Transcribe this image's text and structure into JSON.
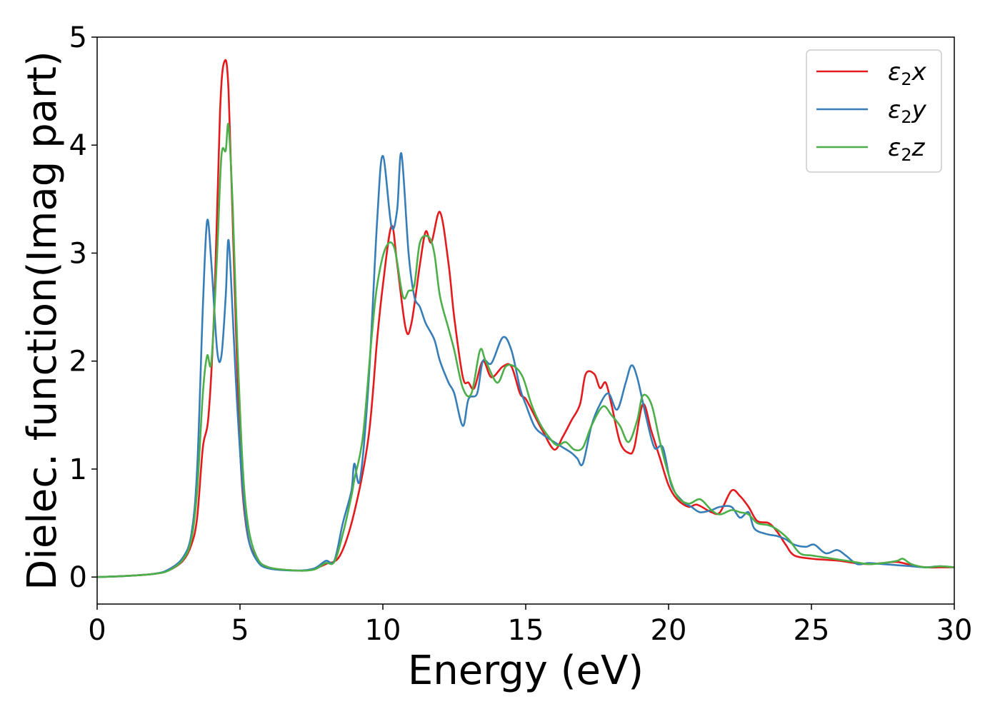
{
  "chart_data": {
    "type": "line",
    "title": "",
    "xlabel": "Energy (eV)",
    "ylabel": "Dielec. function(Imag part)",
    "xlim": [
      0,
      30
    ],
    "ylim": [
      -0.25,
      5
    ],
    "xticks": [
      0,
      5,
      10,
      15,
      20,
      25,
      30
    ],
    "yticks": [
      0,
      1,
      2,
      3,
      4,
      5
    ],
    "grid": false,
    "legend": "top-right",
    "series": [
      {
        "name": "ε2x",
        "legend_main": "ε",
        "legend_sub": "2",
        "legend_tail": "x",
        "color": "#e41a1c",
        "points": [
          [
            0,
            0.0
          ],
          [
            1,
            0.01
          ],
          [
            2,
            0.03
          ],
          [
            2.5,
            0.06
          ],
          [
            3,
            0.15
          ],
          [
            3.3,
            0.3
          ],
          [
            3.5,
            0.55
          ],
          [
            3.7,
            1.2
          ],
          [
            3.9,
            1.5
          ],
          [
            4.1,
            2.5
          ],
          [
            4.3,
            4.3
          ],
          [
            4.45,
            4.77
          ],
          [
            4.6,
            4.5
          ],
          [
            4.8,
            2.8
          ],
          [
            5,
            1.2
          ],
          [
            5.2,
            0.5
          ],
          [
            5.5,
            0.2
          ],
          [
            6,
            0.09
          ],
          [
            7,
            0.06
          ],
          [
            7.5,
            0.07
          ],
          [
            8,
            0.12
          ],
          [
            8.5,
            0.2
          ],
          [
            9,
            0.6
          ],
          [
            9.5,
            1.3
          ],
          [
            9.8,
            2.2
          ],
          [
            10,
            2.7
          ],
          [
            10.3,
            3.25
          ],
          [
            10.5,
            2.9
          ],
          [
            10.8,
            2.3
          ],
          [
            11,
            2.35
          ],
          [
            11.3,
            2.9
          ],
          [
            11.5,
            3.2
          ],
          [
            11.7,
            3.1
          ],
          [
            12,
            3.38
          ],
          [
            12.3,
            2.9
          ],
          [
            12.5,
            2.4
          ],
          [
            12.8,
            1.85
          ],
          [
            13,
            1.8
          ],
          [
            13.2,
            1.75
          ],
          [
            13.5,
            2.0
          ],
          [
            13.8,
            1.85
          ],
          [
            14.2,
            1.95
          ],
          [
            14.5,
            1.95
          ],
          [
            14.8,
            1.7
          ],
          [
            15,
            1.65
          ],
          [
            15.3,
            1.5
          ],
          [
            15.6,
            1.35
          ],
          [
            16,
            1.18
          ],
          [
            16.3,
            1.3
          ],
          [
            16.6,
            1.45
          ],
          [
            16.9,
            1.6
          ],
          [
            17.1,
            1.88
          ],
          [
            17.4,
            1.88
          ],
          [
            17.6,
            1.75
          ],
          [
            17.8,
            1.8
          ],
          [
            18,
            1.6
          ],
          [
            18.3,
            1.25
          ],
          [
            18.6,
            1.15
          ],
          [
            18.8,
            1.2
          ],
          [
            19.1,
            1.6
          ],
          [
            19.4,
            1.35
          ],
          [
            19.7,
            1.1
          ],
          [
            20,
            0.85
          ],
          [
            20.3,
            0.72
          ],
          [
            20.7,
            0.65
          ],
          [
            21,
            0.67
          ],
          [
            21.5,
            0.6
          ],
          [
            21.8,
            0.6
          ],
          [
            22.2,
            0.8
          ],
          [
            22.5,
            0.75
          ],
          [
            22.8,
            0.65
          ],
          [
            23.1,
            0.52
          ],
          [
            23.5,
            0.5
          ],
          [
            23.8,
            0.42
          ],
          [
            24.1,
            0.3
          ],
          [
            24.4,
            0.2
          ],
          [
            25,
            0.17
          ],
          [
            25.5,
            0.16
          ],
          [
            26,
            0.15
          ],
          [
            26.5,
            0.13
          ],
          [
            27,
            0.12
          ],
          [
            27.5,
            0.13
          ],
          [
            28,
            0.14
          ],
          [
            28.5,
            0.11
          ],
          [
            29,
            0.09
          ],
          [
            29.5,
            0.09
          ],
          [
            30,
            0.09
          ]
        ]
      },
      {
        "name": "ε2y",
        "legend_main": "ε",
        "legend_sub": "2",
        "legend_tail": "y",
        "color": "#377eb8",
        "points": [
          [
            0,
            0.0
          ],
          [
            1,
            0.01
          ],
          [
            2,
            0.03
          ],
          [
            2.5,
            0.07
          ],
          [
            3,
            0.18
          ],
          [
            3.3,
            0.4
          ],
          [
            3.5,
            1.0
          ],
          [
            3.7,
            2.5
          ],
          [
            3.85,
            3.3
          ],
          [
            4.0,
            2.9
          ],
          [
            4.2,
            2.1
          ],
          [
            4.35,
            2.05
          ],
          [
            4.5,
            2.6
          ],
          [
            4.6,
            3.12
          ],
          [
            4.75,
            2.4
          ],
          [
            4.9,
            1.6
          ],
          [
            5.1,
            0.8
          ],
          [
            5.3,
            0.35
          ],
          [
            5.6,
            0.15
          ],
          [
            6,
            0.08
          ],
          [
            7,
            0.06
          ],
          [
            7.6,
            0.08
          ],
          [
            8,
            0.15
          ],
          [
            8.3,
            0.15
          ],
          [
            8.6,
            0.5
          ],
          [
            8.9,
            0.8
          ],
          [
            9.0,
            1.05
          ],
          [
            9.2,
            0.9
          ],
          [
            9.5,
            1.8
          ],
          [
            9.8,
            3.3
          ],
          [
            10.0,
            3.9
          ],
          [
            10.3,
            3.25
          ],
          [
            10.5,
            3.4
          ],
          [
            10.65,
            3.92
          ],
          [
            10.9,
            3.0
          ],
          [
            11.1,
            2.6
          ],
          [
            11.3,
            2.5
          ],
          [
            11.5,
            2.35
          ],
          [
            11.8,
            2.2
          ],
          [
            12,
            2.0
          ],
          [
            12.3,
            1.8
          ],
          [
            12.5,
            1.7
          ],
          [
            12.8,
            1.4
          ],
          [
            13.0,
            1.65
          ],
          [
            13.3,
            1.7
          ],
          [
            13.5,
            2.0
          ],
          [
            13.8,
            1.98
          ],
          [
            14.2,
            2.22
          ],
          [
            14.5,
            2.1
          ],
          [
            14.8,
            1.75
          ],
          [
            15.0,
            1.6
          ],
          [
            15.3,
            1.4
          ],
          [
            15.6,
            1.32
          ],
          [
            16,
            1.25
          ],
          [
            16.3,
            1.2
          ],
          [
            16.6,
            1.15
          ],
          [
            16.8,
            1.1
          ],
          [
            17.0,
            1.05
          ],
          [
            17.3,
            1.4
          ],
          [
            17.6,
            1.6
          ],
          [
            17.9,
            1.7
          ],
          [
            18.2,
            1.55
          ],
          [
            18.5,
            1.8
          ],
          [
            18.7,
            1.96
          ],
          [
            18.9,
            1.85
          ],
          [
            19.2,
            1.5
          ],
          [
            19.5,
            1.2
          ],
          [
            19.8,
            1.2
          ],
          [
            20.1,
            0.85
          ],
          [
            20.5,
            0.7
          ],
          [
            20.8,
            0.65
          ],
          [
            21.1,
            0.6
          ],
          [
            21.5,
            0.62
          ],
          [
            21.8,
            0.65
          ],
          [
            22.2,
            0.65
          ],
          [
            22.5,
            0.55
          ],
          [
            22.8,
            0.6
          ],
          [
            23.0,
            0.45
          ],
          [
            23.4,
            0.4
          ],
          [
            23.8,
            0.38
          ],
          [
            24.1,
            0.35
          ],
          [
            24.4,
            0.3
          ],
          [
            24.8,
            0.28
          ],
          [
            25.1,
            0.3
          ],
          [
            25.5,
            0.22
          ],
          [
            25.9,
            0.25
          ],
          [
            26.2,
            0.2
          ],
          [
            26.6,
            0.12
          ],
          [
            27,
            0.13
          ],
          [
            27.5,
            0.12
          ],
          [
            28,
            0.11
          ],
          [
            28.5,
            0.1
          ],
          [
            29,
            0.09
          ],
          [
            29.5,
            0.1
          ],
          [
            30,
            0.09
          ]
        ]
      },
      {
        "name": "ε2z",
        "legend_main": "ε",
        "legend_sub": "2",
        "legend_tail": "z",
        "color": "#4daf4a",
        "points": [
          [
            0,
            0.0
          ],
          [
            1,
            0.01
          ],
          [
            2,
            0.03
          ],
          [
            2.5,
            0.06
          ],
          [
            3,
            0.16
          ],
          [
            3.3,
            0.35
          ],
          [
            3.5,
            0.8
          ],
          [
            3.7,
            1.7
          ],
          [
            3.85,
            2.05
          ],
          [
            4.0,
            2.0
          ],
          [
            4.2,
            3.0
          ],
          [
            4.35,
            3.9
          ],
          [
            4.5,
            3.95
          ],
          [
            4.6,
            4.18
          ],
          [
            4.75,
            3.4
          ],
          [
            4.9,
            2.2
          ],
          [
            5.1,
            1.0
          ],
          [
            5.3,
            0.45
          ],
          [
            5.6,
            0.18
          ],
          [
            6,
            0.09
          ],
          [
            7,
            0.06
          ],
          [
            7.6,
            0.07
          ],
          [
            8,
            0.13
          ],
          [
            8.3,
            0.14
          ],
          [
            8.6,
            0.4
          ],
          [
            8.9,
            0.75
          ],
          [
            9.0,
            0.9
          ],
          [
            9.3,
            1.3
          ],
          [
            9.6,
            2.2
          ],
          [
            9.8,
            2.7
          ],
          [
            10.1,
            3.05
          ],
          [
            10.4,
            3.05
          ],
          [
            10.7,
            2.6
          ],
          [
            10.9,
            2.65
          ],
          [
            11.1,
            2.7
          ],
          [
            11.3,
            3.1
          ],
          [
            11.6,
            3.15
          ],
          [
            11.8,
            3.0
          ],
          [
            12,
            2.6
          ],
          [
            12.3,
            2.3
          ],
          [
            12.5,
            2.1
          ],
          [
            12.8,
            1.75
          ],
          [
            13.1,
            1.7
          ],
          [
            13.4,
            2.1
          ],
          [
            13.6,
            2.0
          ],
          [
            14.0,
            1.8
          ],
          [
            14.3,
            1.95
          ],
          [
            14.6,
            1.95
          ],
          [
            14.9,
            1.85
          ],
          [
            15.2,
            1.6
          ],
          [
            15.5,
            1.42
          ],
          [
            15.8,
            1.3
          ],
          [
            16.1,
            1.22
          ],
          [
            16.4,
            1.25
          ],
          [
            16.7,
            1.18
          ],
          [
            17.0,
            1.2
          ],
          [
            17.3,
            1.4
          ],
          [
            17.7,
            1.58
          ],
          [
            18.0,
            1.5
          ],
          [
            18.3,
            1.4
          ],
          [
            18.6,
            1.25
          ],
          [
            18.9,
            1.45
          ],
          [
            19.1,
            1.68
          ],
          [
            19.4,
            1.6
          ],
          [
            19.7,
            1.25
          ],
          [
            20.0,
            0.95
          ],
          [
            20.3,
            0.75
          ],
          [
            20.7,
            0.68
          ],
          [
            21.1,
            0.72
          ],
          [
            21.5,
            0.62
          ],
          [
            21.8,
            0.58
          ],
          [
            22.2,
            0.62
          ],
          [
            22.5,
            0.6
          ],
          [
            22.8,
            0.58
          ],
          [
            23.1,
            0.5
          ],
          [
            23.5,
            0.48
          ],
          [
            23.8,
            0.44
          ],
          [
            24.2,
            0.35
          ],
          [
            24.6,
            0.22
          ],
          [
            25,
            0.2
          ],
          [
            25.5,
            0.18
          ],
          [
            26,
            0.16
          ],
          [
            26.5,
            0.14
          ],
          [
            27,
            0.12
          ],
          [
            27.5,
            0.13
          ],
          [
            28,
            0.15
          ],
          [
            28.2,
            0.17
          ],
          [
            28.5,
            0.12
          ],
          [
            29,
            0.09
          ],
          [
            29.5,
            0.1
          ],
          [
            30,
            0.09
          ]
        ]
      }
    ]
  }
}
